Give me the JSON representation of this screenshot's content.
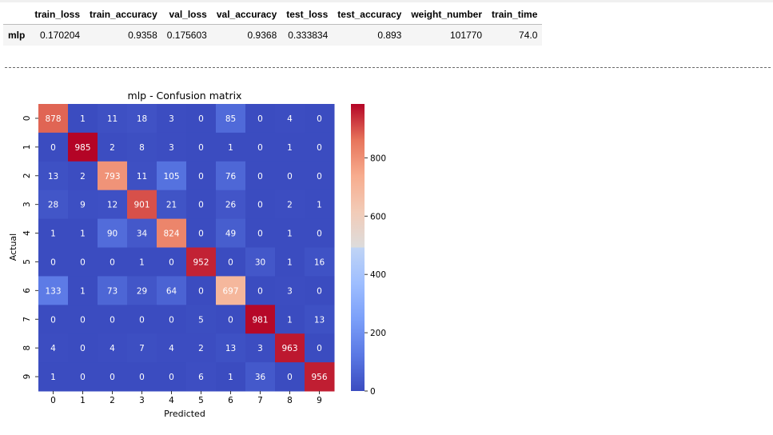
{
  "metrics_table": {
    "columns": [
      "",
      "train_loss",
      "train_accuracy",
      "val_loss",
      "val_accuracy",
      "test_loss",
      "test_accuracy",
      "weight_number",
      "train_time"
    ],
    "rows": [
      [
        "mlp",
        "0.170204",
        "0.9358",
        "0.175603",
        "0.9368",
        "0.333834",
        "0.893",
        "101770",
        "74.0"
      ]
    ]
  },
  "chart_data": {
    "type": "heatmap",
    "title": "mlp - Confusion matrix",
    "xlabel": "Predicted",
    "ylabel": "Actual",
    "x_tick_labels": [
      "0",
      "1",
      "2",
      "3",
      "4",
      "5",
      "6",
      "7",
      "8",
      "9"
    ],
    "y_tick_labels": [
      "0",
      "1",
      "2",
      "3",
      "4",
      "5",
      "6",
      "7",
      "8",
      "9"
    ],
    "values": [
      [
        878,
        1,
        11,
        18,
        3,
        0,
        85,
        0,
        4,
        0
      ],
      [
        0,
        985,
        2,
        8,
        3,
        0,
        1,
        0,
        1,
        0
      ],
      [
        13,
        2,
        793,
        11,
        105,
        0,
        76,
        0,
        0,
        0
      ],
      [
        28,
        9,
        12,
        901,
        21,
        0,
        26,
        0,
        2,
        1
      ],
      [
        1,
        1,
        90,
        34,
        824,
        0,
        49,
        0,
        1,
        0
      ],
      [
        0,
        0,
        0,
        1,
        0,
        952,
        0,
        30,
        1,
        16
      ],
      [
        133,
        1,
        73,
        29,
        64,
        0,
        697,
        0,
        3,
        0
      ],
      [
        0,
        0,
        0,
        0,
        0,
        5,
        0,
        981,
        1,
        13
      ],
      [
        4,
        0,
        4,
        7,
        4,
        2,
        13,
        3,
        963,
        0
      ],
      [
        1,
        0,
        0,
        0,
        0,
        6,
        1,
        36,
        0,
        956
      ]
    ],
    "colormap": "coolwarm",
    "vmin": 0,
    "vmax": 985,
    "colorbar_ticks": [
      0,
      200,
      400,
      600,
      800
    ]
  }
}
